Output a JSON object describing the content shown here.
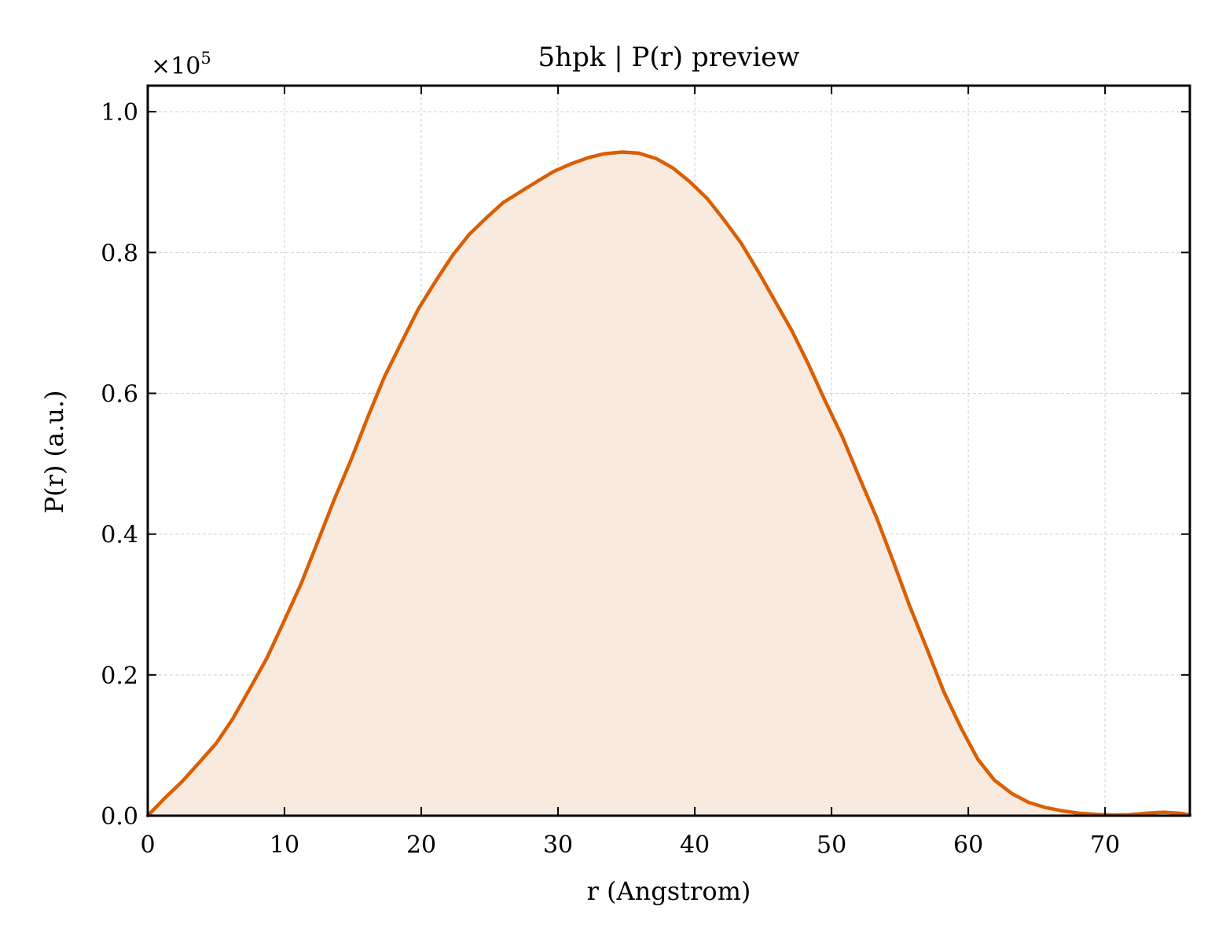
{
  "chart_data": {
    "type": "area",
    "title": "5hpk | P(r) preview",
    "xlabel": "r (Angstrom)",
    "ylabel": "P(r) (a.u.)",
    "y_multiplier_base": "×10",
    "y_multiplier_exponent": "5",
    "xlim": [
      0,
      76.2
    ],
    "ylim": [
      0,
      1.037
    ],
    "grid": true,
    "legend": "none",
    "x_ticks": [
      "0",
      "10",
      "20",
      "30",
      "40",
      "50",
      "60",
      "70"
    ],
    "x_tick_values": [
      0,
      10,
      20,
      30,
      40,
      50,
      60,
      70
    ],
    "y_ticks": [
      "0.0",
      "0.2",
      "0.4",
      "0.6",
      "0.8",
      "1.0"
    ],
    "y_tick_values": [
      0,
      0.2,
      0.4,
      0.6,
      0.8,
      1.0
    ],
    "colors": {
      "line": "#d95f02",
      "fill": "#f9eadf",
      "grid": "#d0d0d0",
      "axes": "#000000"
    },
    "series": [
      {
        "x": [
          0,
          1.2,
          2.5,
          3.7,
          5.0,
          6.2,
          7.4,
          8.7,
          9.9,
          11.2,
          12.4,
          13.6,
          14.9,
          16.1,
          17.3,
          18.6,
          19.8,
          21.1,
          22.3,
          23.5,
          24.8,
          26.0,
          27.3,
          28.5,
          29.7,
          31.0,
          32.2,
          33.4,
          34.7,
          35.9,
          37.2,
          38.4,
          39.6,
          40.9,
          42.1,
          43.4,
          44.6,
          45.8,
          47.1,
          48.3,
          49.5,
          50.8,
          52.0,
          53.3,
          54.5,
          55.7,
          57.0,
          58.2,
          59.5,
          60.7,
          61.9,
          63.2,
          64.4,
          65.6,
          66.9,
          68.1,
          69.4,
          70.6,
          71.8,
          73.1,
          74.3,
          75.6,
          76.2
        ],
        "y": [
          0,
          0.0241,
          0.0482,
          0.0741,
          0.1026,
          0.1372,
          0.1781,
          0.2235,
          0.2736,
          0.3289,
          0.3877,
          0.4474,
          0.5071,
          0.5668,
          0.623,
          0.6741,
          0.7203,
          0.7608,
          0.7963,
          0.8255,
          0.85,
          0.871,
          0.8869,
          0.9013,
          0.9152,
          0.9263,
          0.9346,
          0.9403,
          0.9427,
          0.9411,
          0.9333,
          0.92,
          0.9011,
          0.8768,
          0.8474,
          0.8131,
          0.7743,
          0.7333,
          0.6888,
          0.6415,
          0.5904,
          0.5378,
          0.4819,
          0.4231,
          0.3618,
          0.2985,
          0.2359,
          0.1764,
          0.1235,
          0.08,
          0.0506,
          0.0312,
          0.019,
          0.0118,
          0.0068,
          0.0035,
          0.0018,
          0.001,
          0.0014,
          0.0037,
          0.0049,
          0.0032,
          0.001
        ]
      }
    ]
  }
}
